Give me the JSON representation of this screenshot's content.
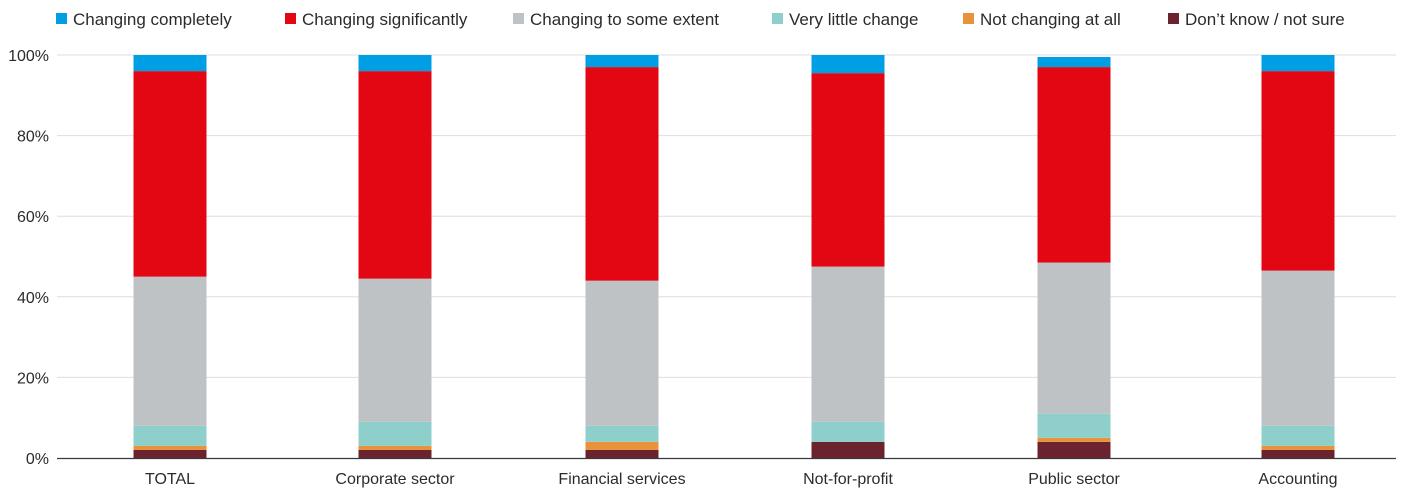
{
  "chart_data": {
    "type": "bar",
    "stacked": true,
    "categories": [
      "TOTAL",
      "Corporate sector",
      "Financial services",
      "Not-for-profit",
      "Public sector",
      "Accounting"
    ],
    "series": [
      {
        "name": "Don’t know / not sure",
        "color": "#6b2330",
        "values": [
          2,
          2,
          2,
          4,
          4,
          2
        ]
      },
      {
        "name": "Not changing at all",
        "color": "#e8923a",
        "values": [
          1,
          1,
          2,
          0,
          1,
          1
        ]
      },
      {
        "name": "Very little change",
        "color": "#8ecfcb",
        "values": [
          5,
          6,
          4,
          5,
          6,
          5
        ]
      },
      {
        "name": "Changing to some extent",
        "color": "#bfc2c4",
        "values": [
          37,
          35.5,
          36,
          38.5,
          37.5,
          38.5
        ]
      },
      {
        "name": "Changing significantly",
        "color": "#e30613",
        "values": [
          51,
          51.5,
          53,
          48,
          48.5,
          49.5
        ]
      },
      {
        "name": "Changing completely",
        "color": "#009ee3",
        "values": [
          4,
          4,
          3,
          4.5,
          2.5,
          4
        ]
      }
    ],
    "legend_order": [
      "Changing completely",
      "Changing significantly",
      "Changing to some extent",
      "Very little change",
      "Not changing at all",
      "Don’t know / not sure"
    ],
    "legend_placement": "top",
    "y_ticks": [
      "0%",
      "20%",
      "40%",
      "60%",
      "80%",
      "100%"
    ],
    "ylim": [
      0,
      100
    ],
    "grid": true,
    "xlabel": "",
    "ylabel": "",
    "title": ""
  }
}
